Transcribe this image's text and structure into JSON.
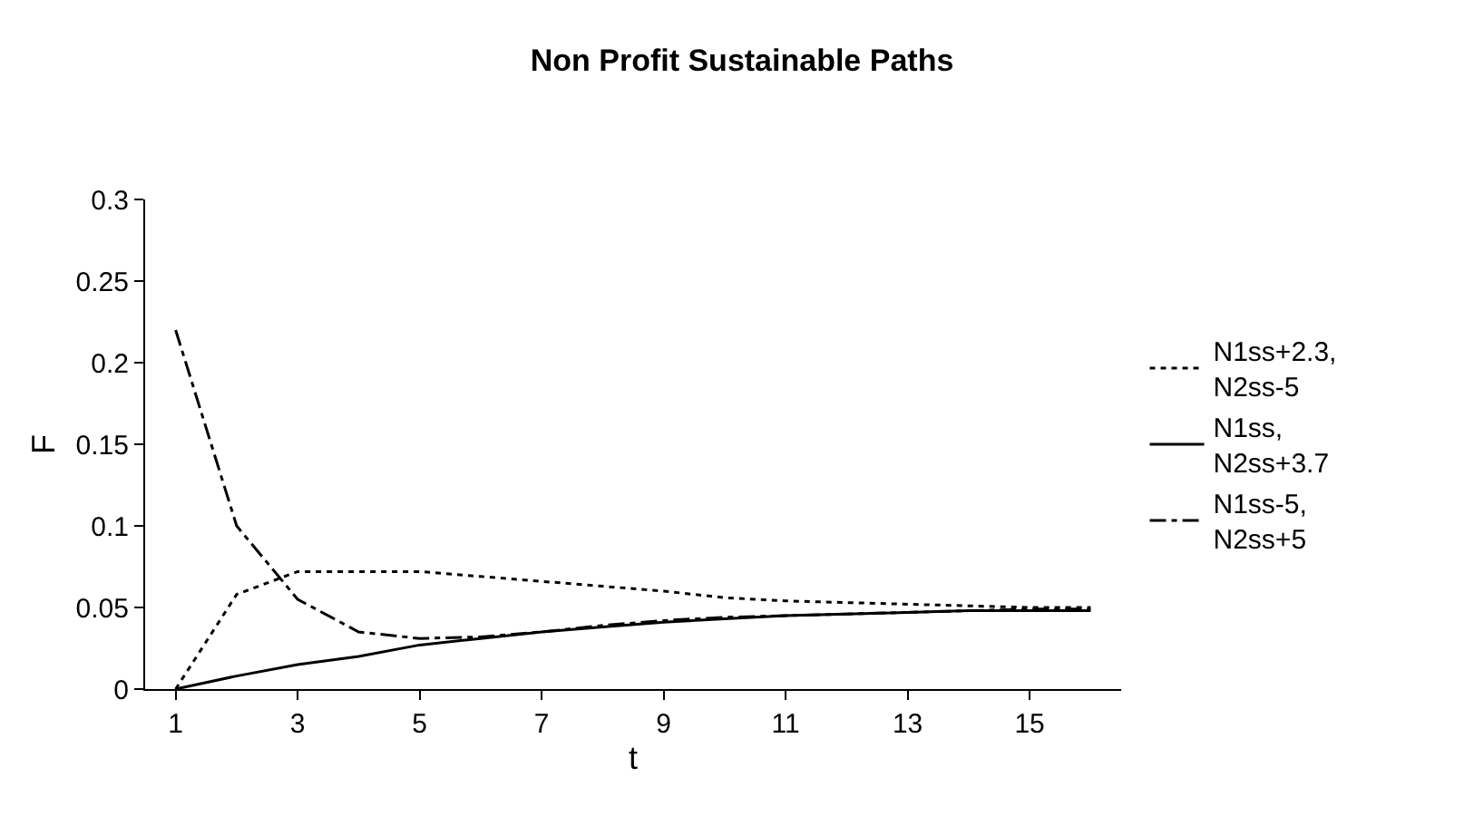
{
  "chart_data": {
    "type": "line",
    "title": "Non Profit Sustainable Paths",
    "xlabel": "t",
    "ylabel": "F",
    "x": [
      1,
      2,
      3,
      4,
      5,
      6,
      7,
      8,
      9,
      10,
      11,
      12,
      13,
      14,
      15,
      16
    ],
    "xlim": [
      0.5,
      16.5
    ],
    "xticks": [
      1,
      3,
      5,
      7,
      9,
      11,
      13,
      15
    ],
    "ylim": [
      0,
      0.3
    ],
    "yticks": [
      0,
      0.05,
      0.1,
      0.15,
      0.2,
      0.25,
      0.3
    ],
    "grid": false,
    "legend": "right",
    "marker": "none",
    "series": [
      {
        "name": "N1ss+2.3, N2ss-5",
        "color": "#000000",
        "line_style": "dotted",
        "values": [
          0,
          0.058,
          0.072,
          0.072,
          0.072,
          0.069,
          0.066,
          0.063,
          0.06,
          0.056,
          0.054,
          0.053,
          0.052,
          0.051,
          0.05,
          0.05
        ]
      },
      {
        "name": "N1ss, N2ss+3.7",
        "color": "#000000",
        "line_style": "solid",
        "values": [
          0,
          0.008,
          0.015,
          0.02,
          0.027,
          0.031,
          0.035,
          0.038,
          0.041,
          0.043,
          0.045,
          0.046,
          0.047,
          0.048,
          0.048,
          0.048
        ]
      },
      {
        "name": "N1ss-5, N2ss+5",
        "color": "#000000",
        "line_style": "dashdot",
        "values": [
          0.22,
          0.1,
          0.055,
          0.035,
          0.031,
          0.032,
          0.035,
          0.039,
          0.042,
          0.044,
          0.045,
          0.046,
          0.047,
          0.048,
          0.049,
          0.049
        ]
      }
    ]
  }
}
